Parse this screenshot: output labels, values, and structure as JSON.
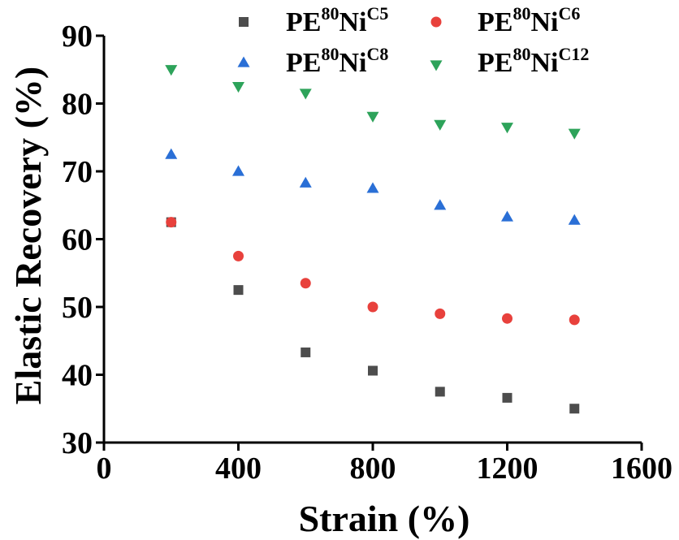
{
  "chart_data": {
    "type": "scatter",
    "xlabel": "Strain (%)",
    "ylabel": "Elastic Recovery (%)",
    "xlim": [
      0,
      1600
    ],
    "ylim": [
      30,
      90
    ],
    "xticks": [
      "0",
      "400",
      "800",
      "1200",
      "1600"
    ],
    "yticks": [
      "30",
      "40",
      "50",
      "60",
      "70",
      "80",
      "90"
    ],
    "legend_placement": "top",
    "series": [
      {
        "name": "PE80NiC5",
        "label": {
          "base": "PE",
          "sup1": "80",
          "mid": "Ni",
          "sup2": "C5"
        },
        "marker": "square",
        "color": "#4d4d4d",
        "x": [
          200,
          400,
          600,
          800,
          1000,
          1200,
          1400
        ],
        "y": [
          62.5,
          52.5,
          43.3,
          40.6,
          37.5,
          36.6,
          35.0
        ]
      },
      {
        "name": "PE80NiC6",
        "label": {
          "base": "PE",
          "sup1": "80",
          "mid": "Ni",
          "sup2": "C6"
        },
        "marker": "circle",
        "color": "#e8413c",
        "x": [
          200,
          400,
          600,
          800,
          1000,
          1200,
          1400
        ],
        "y": [
          62.5,
          57.5,
          53.5,
          50.0,
          49.0,
          48.3,
          48.1
        ]
      },
      {
        "name": "PE80NiC8",
        "label": {
          "base": "PE",
          "sup1": "80",
          "mid": "Ni",
          "sup2": "C8"
        },
        "marker": "triangle-up",
        "color": "#2a6fd6",
        "x": [
          200,
          400,
          600,
          800,
          1000,
          1200,
          1400
        ],
        "y": [
          72.5,
          70.0,
          68.3,
          67.5,
          65.0,
          63.3,
          62.8
        ]
      },
      {
        "name": "PE80NiC12",
        "label": {
          "base": "PE",
          "sup1": "80",
          "mid": "Ni",
          "sup2": "C12"
        },
        "marker": "triangle-down",
        "color": "#2da35a",
        "x": [
          200,
          400,
          600,
          800,
          1000,
          1200,
          1400
        ],
        "y": [
          85.0,
          82.5,
          81.5,
          78.1,
          76.9,
          76.5,
          75.6
        ]
      }
    ]
  }
}
